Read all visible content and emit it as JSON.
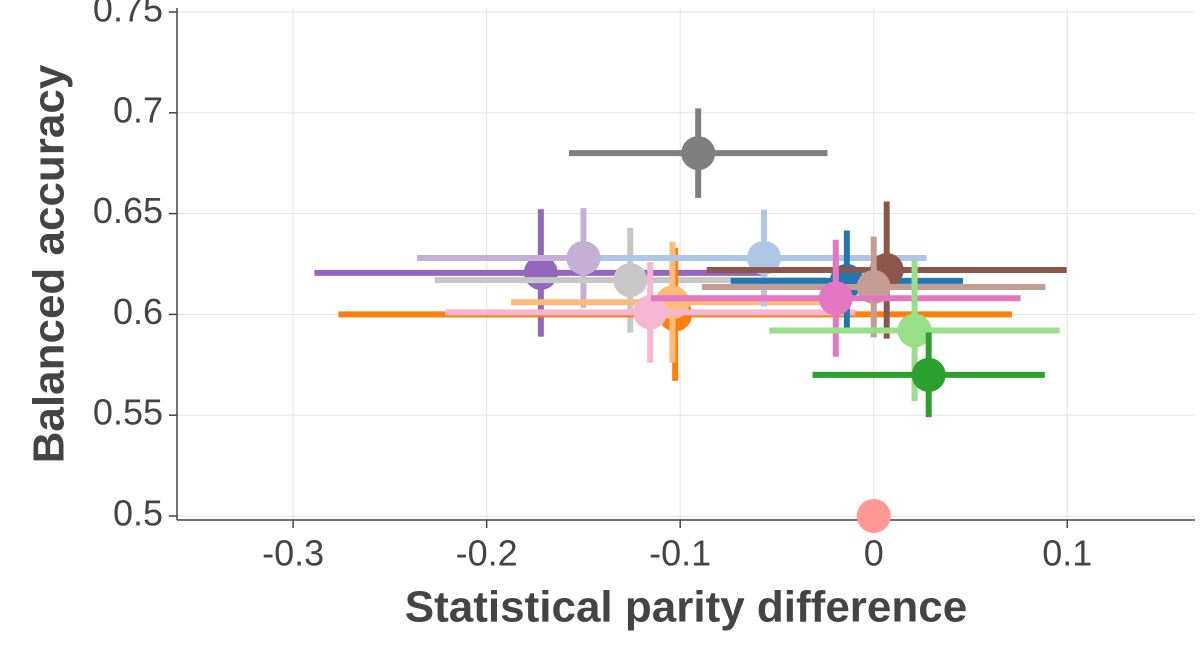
{
  "chart_data": {
    "type": "errorbar-scatter",
    "xlabel": "Statistical parity difference",
    "ylabel": "Balanced accuracy",
    "xlim": [
      -0.36,
      0.166
    ],
    "ylim": [
      0.498,
      0.752
    ],
    "xticks": [
      -0.3,
      -0.2,
      -0.1,
      0,
      0.1
    ],
    "yticks": [
      0.5,
      0.55,
      0.6,
      0.65,
      0.7,
      0.75
    ],
    "grid": true,
    "points": [
      {
        "color": "#7f7f7f",
        "x": -0.0907,
        "y": 0.68,
        "xerr": 0.0668,
        "yerr": 0.0222
      },
      {
        "color": "#9467bd",
        "x": -0.172,
        "y": 0.6206,
        "xerr": 0.117,
        "yerr": 0.0316
      },
      {
        "color": "#c5b0d5",
        "x": -0.15,
        "y": 0.628,
        "xerr": 0.086,
        "yerr": 0.0247
      },
      {
        "color": "#c7c7c7",
        "x": -0.1258,
        "y": 0.617,
        "xerr": 0.101,
        "yerr": 0.026
      },
      {
        "color": "#ff7f0e",
        "x": -0.1026,
        "y": 0.6,
        "xerr": 0.174,
        "yerr": 0.033
      },
      {
        "color": "#ffbb78",
        "x": -0.104,
        "y": 0.606,
        "xerr": 0.0835,
        "yerr": 0.03
      },
      {
        "color": "#f7b6d2",
        "x": -0.1155,
        "y": 0.601,
        "xerr": 0.106,
        "yerr": 0.025
      },
      {
        "color": "#aec7e8",
        "x": -0.0567,
        "y": 0.628,
        "xerr": 0.084,
        "yerr": 0.024
      },
      {
        "color": "#1f77b4",
        "x": -0.0139,
        "y": 0.6166,
        "xerr": 0.06,
        "yerr": 0.025
      },
      {
        "color": "#8c564b",
        "x": 0.0067,
        "y": 0.622,
        "xerr": 0.093,
        "yerr": 0.034
      },
      {
        "color": "#c49c94",
        "x": 0.0,
        "y": 0.6136,
        "xerr": 0.0887,
        "yerr": 0.025
      },
      {
        "color": "#e377c2",
        "x": -0.0196,
        "y": 0.608,
        "xerr": 0.0955,
        "yerr": 0.029
      },
      {
        "color": "#98df8a",
        "x": 0.0211,
        "y": 0.592,
        "xerr": 0.075,
        "yerr": 0.035
      },
      {
        "color": "#2ca02c",
        "x": 0.0284,
        "y": 0.57,
        "xerr": 0.06,
        "yerr": 0.021
      },
      {
        "color": "#ff9896",
        "x": 0.0,
        "y": 0.5
      }
    ]
  }
}
